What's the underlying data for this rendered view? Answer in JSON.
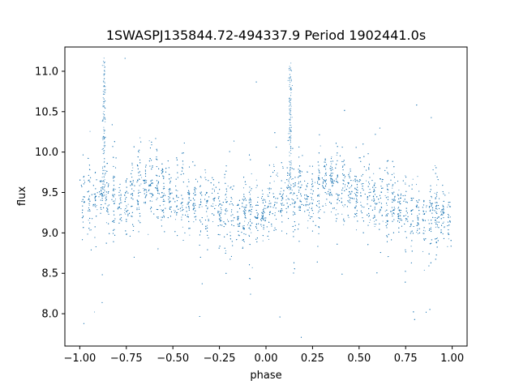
{
  "chart_data": {
    "type": "scatter",
    "title": "1SWASPJ135844.72-494337.9 Period 1902441.0s",
    "xlabel": "phase",
    "ylabel": "flux",
    "xlim": [
      -1.08,
      1.08
    ],
    "ylim": [
      7.6,
      11.3
    ],
    "xticks": [
      -1.0,
      -0.75,
      -0.5,
      -0.25,
      0.0,
      0.25,
      0.5,
      0.75,
      1.0
    ],
    "xtick_labels": [
      "−1.00",
      "−0.75",
      "−0.50",
      "−0.25",
      "0.00",
      "0.25",
      "0.50",
      "0.75",
      "1.00"
    ],
    "yticks": [
      8.0,
      8.5,
      9.0,
      9.5,
      10.0,
      10.5,
      11.0
    ],
    "ytick_labels": [
      "8.0",
      "8.5",
      "9.0",
      "9.5",
      "10.0",
      "10.5",
      "11.0"
    ],
    "grid": false,
    "marker_color": "#1f77b4",
    "series": [
      {
        "x_range": [
          -1.0,
          1.0
        ],
        "typical_flux_range": [
          8.8,
          10.0
        ],
        "mean_flux_profile": [
          {
            "phase": -1.0,
            "flux": 9.3
          },
          {
            "phase": -0.87,
            "flux": 9.5
          },
          {
            "phase": -0.75,
            "flux": 9.4
          },
          {
            "phase": -0.65,
            "flux": 9.65
          },
          {
            "phase": -0.5,
            "flux": 9.45
          },
          {
            "phase": -0.3,
            "flux": 9.35
          },
          {
            "phase": -0.15,
            "flux": 9.15
          },
          {
            "phase": 0.0,
            "flux": 9.25
          },
          {
            "phase": 0.13,
            "flux": 9.5
          },
          {
            "phase": 0.25,
            "flux": 9.4
          },
          {
            "phase": 0.35,
            "flux": 9.65
          },
          {
            "phase": 0.5,
            "flux": 9.45
          },
          {
            "phase": 0.7,
            "flux": 9.35
          },
          {
            "phase": 0.85,
            "flux": 9.15
          },
          {
            "phase": 1.0,
            "flux": 9.25
          }
        ],
        "flares": [
          {
            "phase": -0.87,
            "peak_flux": 11.1
          },
          {
            "phase": 0.13,
            "peak_flux": 11.1
          }
        ]
      }
    ]
  }
}
